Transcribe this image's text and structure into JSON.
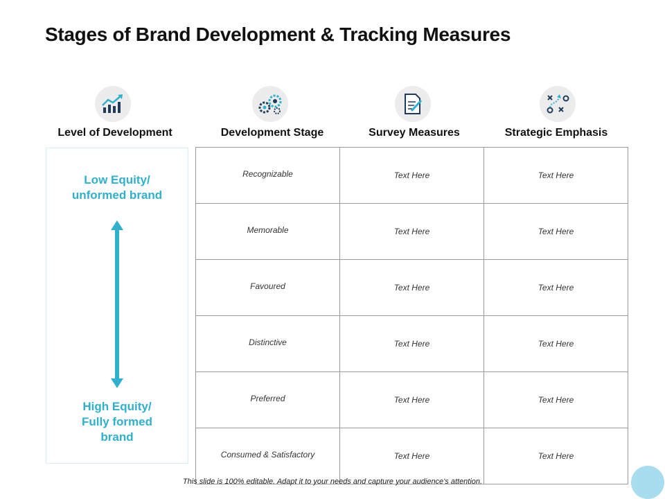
{
  "slide": {
    "title": "Stages of Brand Development & Tracking Measures",
    "footer": "This slide is 100% editable. Adapt it to your needs and capture your audience's attention."
  },
  "columns": [
    {
      "label": "Level of Development",
      "icon": "growth-chart-icon"
    },
    {
      "label": "Development Stage",
      "icon": "gears-icon"
    },
    {
      "label": "Survey Measures",
      "icon": "document-pen-icon"
    },
    {
      "label": "Strategic Emphasis",
      "icon": "strategy-plan-icon"
    }
  ],
  "level": {
    "top_label": "Low Equity/\nunformed brand",
    "bottom_label": "High Equity/\nFully formed\nbrand"
  },
  "rows": [
    {
      "stage": "Recognizable",
      "survey": "Text Here",
      "strategy": "Text Here"
    },
    {
      "stage": "Memorable",
      "survey": "Text Here",
      "strategy": "Text Here"
    },
    {
      "stage": "Favoured",
      "survey": "Text Here",
      "strategy": "Text Here"
    },
    {
      "stage": "Distinctive",
      "survey": "Text Here",
      "strategy": "Text Here"
    },
    {
      "stage": "Preferred",
      "survey": "Text Here",
      "strategy": "Text Here"
    },
    {
      "stage": "Consumed  & Satisfactory",
      "survey": "Text Here",
      "strategy": "Text Here"
    }
  ],
  "colors": {
    "accent": "#2fb0cc",
    "icon_dark": "#1f3a5a",
    "icon_circle": "#ececec",
    "grid_border": "#9a9a9a",
    "corner_circle": "#a8dcef"
  }
}
